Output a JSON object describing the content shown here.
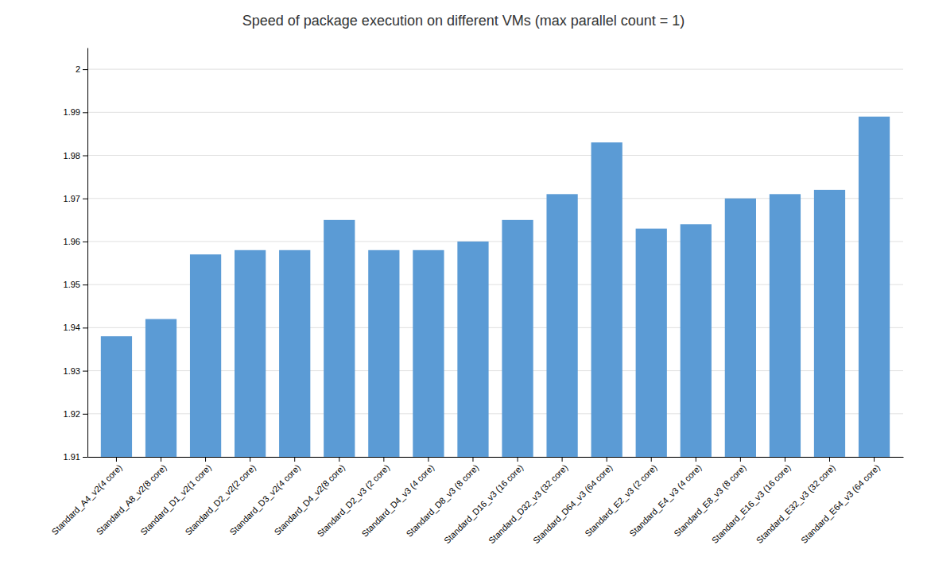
{
  "chart_data": {
    "type": "bar",
    "title": "Speed of package execution on different VMs (max parallel count = 1)",
    "categories": [
      "Standard_A4_v2(4 core)",
      "Standard_A8_v2(8 core)",
      "Standard_D1_v2(1 core)",
      "Standard_D2_v2(2 core)",
      "Standard_D3_v2(4 core)",
      "Standard_D4_v2(8 core)",
      "Standard_D2_v3 (2 core)",
      "Standard_D4_v3 (4 core)",
      "Standard_D8_v3 (8 core)",
      "Standard_D16_v3 (16 core)",
      "Standard_D32_v3 (32 core)",
      "Standard_D64_v3 (64 core)",
      "Standard_E2_v3 (2 core)",
      "Standard_E4_v3 (4 core)",
      "Standard_E8_v3 (8 core)",
      "Standard_E16_v3 (16 core)",
      "Standard_E32_v3 (32 core)",
      "Standard_E64_v3 (64 core)"
    ],
    "values": [
      1.938,
      1.942,
      1.957,
      1.958,
      1.958,
      1.965,
      1.958,
      1.958,
      1.96,
      1.965,
      1.971,
      1.983,
      1.963,
      1.964,
      1.97,
      1.971,
      1.972,
      1.989
    ],
    "color": "#5B9BD5",
    "ylim": [
      1.91,
      2.005
    ],
    "yticks": [
      1.91,
      1.92,
      1.93,
      1.94,
      1.95,
      1.96,
      1.97,
      1.98,
      1.99,
      2
    ],
    "grid": true
  }
}
